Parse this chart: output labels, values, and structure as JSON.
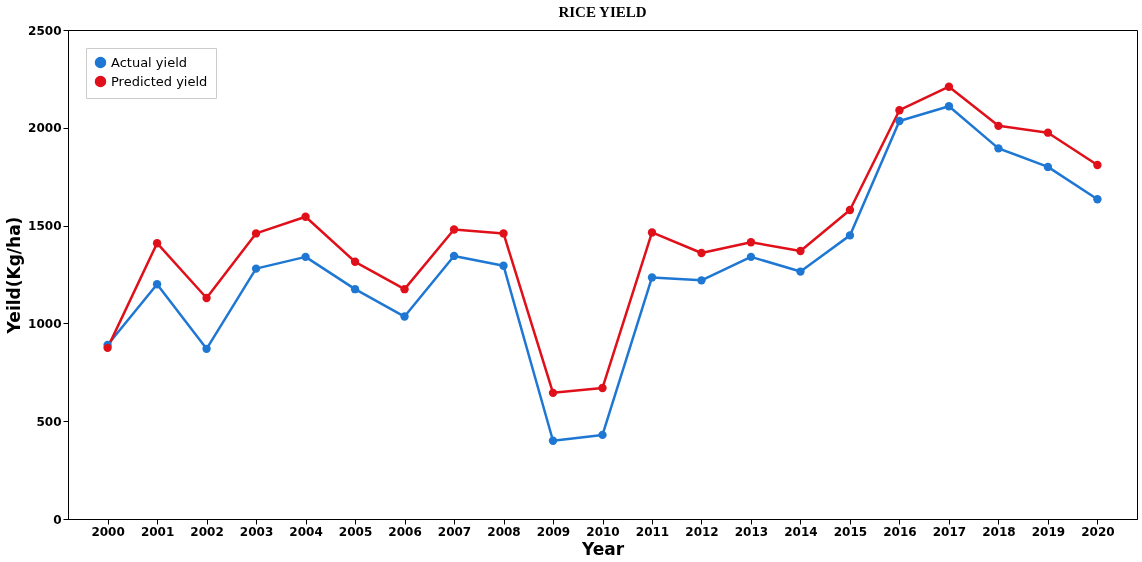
{
  "chart_data": {
    "type": "line",
    "title": "RICE YIELD",
    "xlabel": "Year",
    "ylabel": "Yeild(Kg/ha)",
    "categories": [
      "2000",
      "2001",
      "2002",
      "2003",
      "2004",
      "2005",
      "2006",
      "2007",
      "2008",
      "2009",
      "2010",
      "2011",
      "2012",
      "2013",
      "2014",
      "2015",
      "2016",
      "2017",
      "2018",
      "2019",
      "2020"
    ],
    "series": [
      {
        "name": "Actual yield",
        "color": "#1f77d4",
        "values": [
          890,
          1200,
          870,
          1280,
          1340,
          1175,
          1035,
          1345,
          1295,
          400,
          430,
          1235,
          1220,
          1340,
          1265,
          1450,
          2035,
          2110,
          1895,
          1800,
          1635
        ]
      },
      {
        "name": "Predicted yield",
        "color": "#e0101a",
        "values": [
          875,
          1410,
          1130,
          1460,
          1545,
          1315,
          1175,
          1480,
          1460,
          645,
          670,
          1465,
          1360,
          1415,
          1370,
          1580,
          2090,
          2210,
          2010,
          1975,
          1810
        ]
      }
    ],
    "ylim": [
      0,
      2500
    ],
    "yticks": [
      0,
      500,
      1000,
      1500,
      2000,
      2500
    ],
    "grid": false,
    "legend": "top left",
    "marker": "circle",
    "line_style": "solid"
  }
}
